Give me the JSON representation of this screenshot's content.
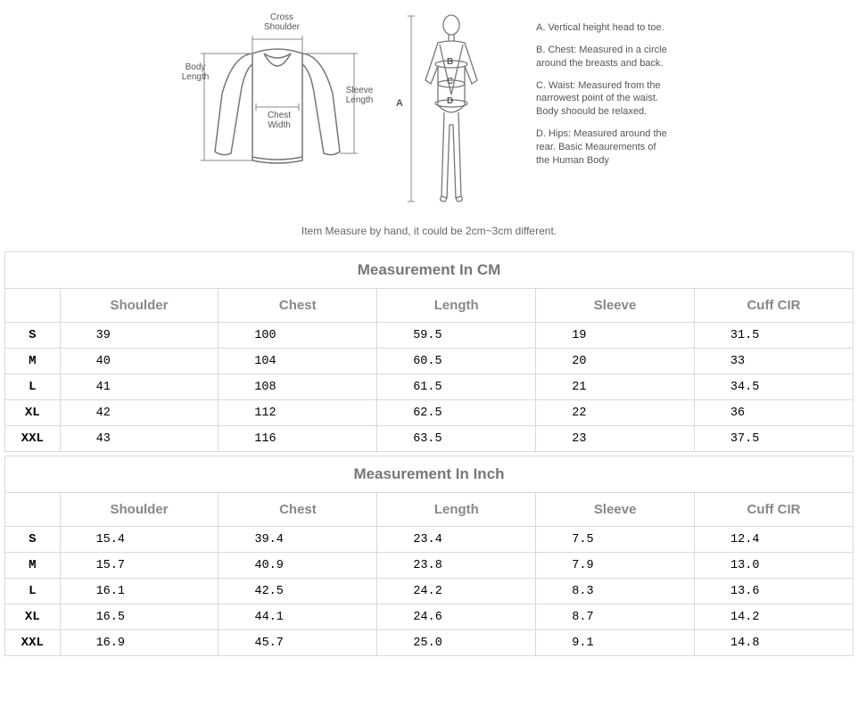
{
  "diagram": {
    "shirt_labels": {
      "cross_shoulder": "Cross\nShoulder",
      "body_length": "Body\nLength",
      "chest_width": "Chest\nWidth",
      "sleeve_length": "Sleeve\nLength"
    },
    "body_marker_A": "A",
    "body_markers_inline": {
      "B": "B",
      "C": "C",
      "D": "D"
    }
  },
  "legend": {
    "A": "A. Vertical height head to toe.",
    "B": "B. Chest: Measured in a circle around the breasts and back.",
    "C": "C. Waist: Measured from the narrowest point of the waist. Body shoould be relaxed.",
    "D": "D. Hips: Measured around the rear. Basic Meaurements of the Human Body"
  },
  "note": "Item Measure by hand, it could be 2cm~3cm different.",
  "tables": {
    "columns": [
      "Shoulder",
      "Chest",
      "Length",
      "Sleeve",
      "Cuff CIR"
    ],
    "sizes": [
      "S",
      "M",
      "L",
      "XL",
      "XXL"
    ],
    "cm": {
      "title": "Measurement In CM",
      "rows": [
        [
          "39",
          "100",
          "59.5",
          "19",
          "31.5"
        ],
        [
          "40",
          "104",
          "60.5",
          "20",
          "33"
        ],
        [
          "41",
          "108",
          "61.5",
          "21",
          "34.5"
        ],
        [
          "42",
          "112",
          "62.5",
          "22",
          "36"
        ],
        [
          "43",
          "116",
          "63.5",
          "23",
          "37.5"
        ]
      ]
    },
    "inch": {
      "title": "Measurement In Inch",
      "rows": [
        [
          "15.4",
          "39.4",
          "23.4",
          "7.5",
          "12.4"
        ],
        [
          "15.7",
          "40.9",
          "23.8",
          "7.9",
          "13.0"
        ],
        [
          "16.1",
          "42.5",
          "24.2",
          "8.3",
          "13.6"
        ],
        [
          "16.5",
          "44.1",
          "24.6",
          "8.7",
          "14.2"
        ],
        [
          "16.9",
          "45.7",
          "25.0",
          "9.1",
          "14.8"
        ]
      ]
    }
  },
  "style": {
    "border_color": "#d9d9d9",
    "header_text_color": "#777777",
    "colheader_text_color": "#888888",
    "value_font": "Courier New",
    "title_fontsize": 17,
    "col_fontsize": 15,
    "cell_fontsize": 13.5,
    "background": "#ffffff",
    "diagram_stroke": "#777777"
  }
}
